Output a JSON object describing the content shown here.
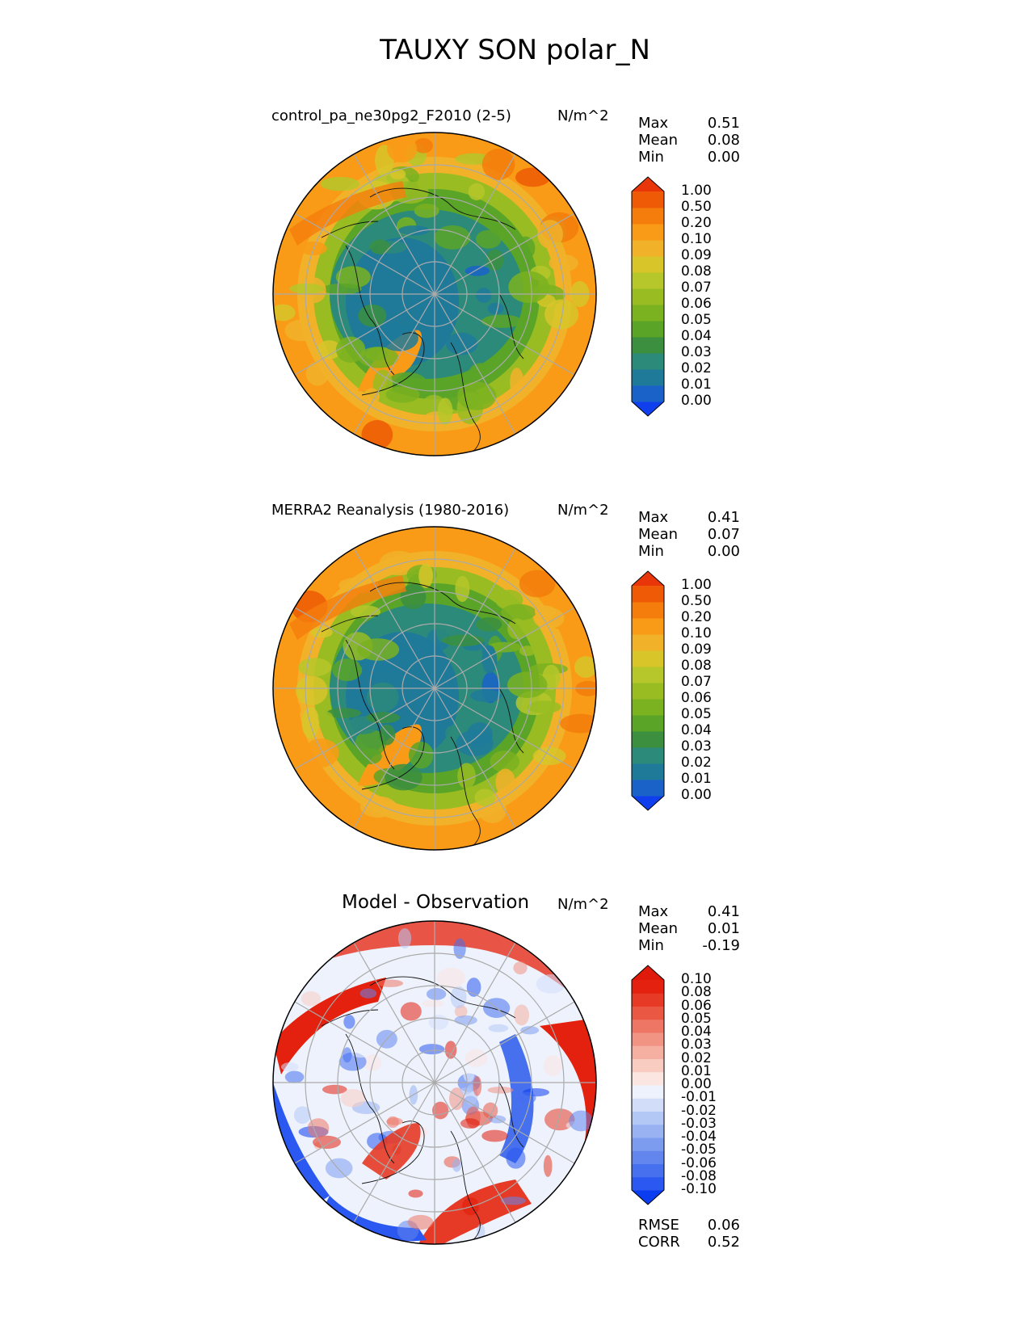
{
  "title": "TAUXY SON polar_N",
  "panels": [
    {
      "name": "test",
      "title": "control_pa_ne30pg2_F2010 (2-5)",
      "units": "N/m^2",
      "stats": [
        {
          "label": "Max",
          "value": "0.51"
        },
        {
          "label": "Mean",
          "value": "0.08"
        },
        {
          "label": "Min",
          "value": "0.00"
        }
      ],
      "colorbar": {
        "levels": [
          "0.00",
          "0.01",
          "0.02",
          "0.03",
          "0.04",
          "0.05",
          "0.06",
          "0.07",
          "0.08",
          "0.09",
          "0.10",
          "0.20",
          "0.50",
          "1.00"
        ],
        "colors": [
          "#1040ee",
          "#1a62c8",
          "#1f7a9a",
          "#2c8a7a",
          "#3b8f3e",
          "#5aa428",
          "#7ab220",
          "#98bc22",
          "#b5c72a",
          "#d7c52a",
          "#f1b22a",
          "#f99b16",
          "#f57d0c",
          "#ee5a06",
          "#e8360a"
        ]
      },
      "extras": []
    },
    {
      "name": "reference",
      "title": "MERRA2 Reanalysis (1980-2016)",
      "units": "N/m^2",
      "stats": [
        {
          "label": "Max",
          "value": "0.41"
        },
        {
          "label": "Mean",
          "value": "0.07"
        },
        {
          "label": "Min",
          "value": "0.00"
        }
      ],
      "colorbar": {
        "levels": [
          "0.00",
          "0.01",
          "0.02",
          "0.03",
          "0.04",
          "0.05",
          "0.06",
          "0.07",
          "0.08",
          "0.09",
          "0.10",
          "0.20",
          "0.50",
          "1.00"
        ],
        "colors": [
          "#1040ee",
          "#1a62c8",
          "#1f7a9a",
          "#2c8a7a",
          "#3b8f3e",
          "#5aa428",
          "#7ab220",
          "#98bc22",
          "#b5c72a",
          "#d7c52a",
          "#f1b22a",
          "#f99b16",
          "#f57d0c",
          "#ee5a06",
          "#e8360a"
        ]
      },
      "extras": []
    },
    {
      "name": "difference",
      "title": "Model - Observation",
      "units": "N/m^2",
      "stats": [
        {
          "label": "Max",
          "value": "0.41"
        },
        {
          "label": "Mean",
          "value": "0.01"
        },
        {
          "label": "Min",
          "value": "-0.19"
        }
      ],
      "colorbar": {
        "levels": [
          "-0.10",
          "-0.08",
          "-0.06",
          "-0.05",
          "-0.04",
          "-0.03",
          "-0.02",
          "-0.01",
          "0.00",
          "0.01",
          "0.02",
          "0.03",
          "0.04",
          "0.05",
          "0.06",
          "0.08",
          "0.10"
        ],
        "colors": [
          "#0a3cf0",
          "#2a58f0",
          "#4670ee",
          "#6286ee",
          "#7c9cf0",
          "#98b2f2",
          "#b4c8f6",
          "#d2def9",
          "#eef2fc",
          "#fbe6e2",
          "#f9ccc2",
          "#f6b0a2",
          "#f29484",
          "#ee7664",
          "#ea5844",
          "#e63a26",
          "#e4200e",
          "#e01a0a"
        ]
      },
      "extras": [
        {
          "label": "RMSE",
          "value": "0.06"
        },
        {
          "label": "CORR",
          "value": "0.52"
        }
      ]
    }
  ],
  "chart_data": {
    "type": "heatmap",
    "projection": "north-polar-stereographic",
    "title": "TAUXY SON polar_N",
    "units": "N/m^2",
    "maps": [
      {
        "title": "control_pa_ne30pg2_F2010 (2-5)",
        "max": 0.51,
        "mean": 0.08,
        "min": 0.0
      },
      {
        "title": "MERRA2 Reanalysis (1980-2016)",
        "max": 0.41,
        "mean": 0.07,
        "min": 0.0
      },
      {
        "title": "Model - Observation",
        "max": 0.41,
        "mean": 0.01,
        "min": -0.19,
        "rmse": 0.06,
        "corr": 0.52
      }
    ]
  }
}
